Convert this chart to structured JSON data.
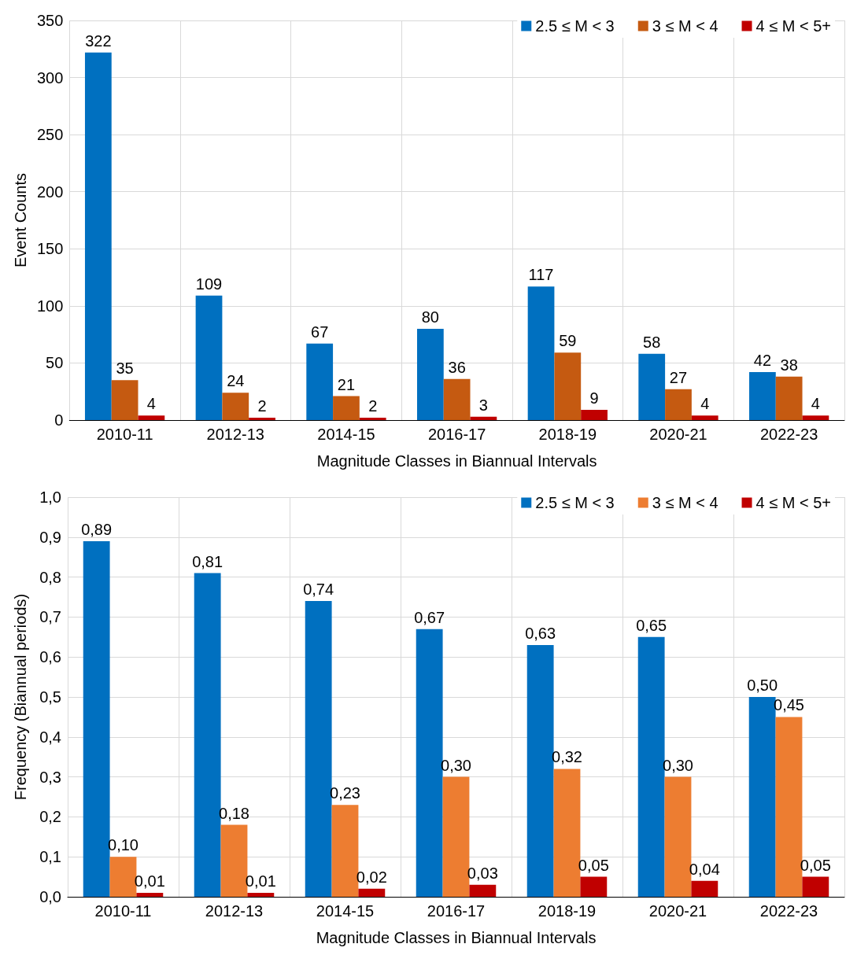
{
  "chart_data": [
    {
      "type": "bar",
      "xlabel": "Magnitude Classes in Biannual Intervals",
      "ylabel": "Event Counts",
      "categories": [
        "2010-11",
        "2012-13",
        "2014-15",
        "2016-17",
        "2018-19",
        "2020-21",
        "2022-23"
      ],
      "series": [
        {
          "name": "2.5 ≤ M < 3",
          "color": "#0070c0",
          "values": [
            322,
            109,
            67,
            80,
            117,
            58,
            42
          ]
        },
        {
          "name": "3 ≤ M < 4",
          "color": "#c55a11",
          "values": [
            35,
            24,
            21,
            36,
            59,
            27,
            38
          ]
        },
        {
          "name": "4 ≤ M < 5+",
          "color": "#c00000",
          "values": [
            4,
            2,
            2,
            3,
            9,
            4,
            4
          ]
        }
      ],
      "ylim": [
        0,
        350
      ],
      "yticks": [
        0,
        50,
        100,
        150,
        200,
        250,
        300,
        350
      ],
      "grid": true,
      "legend": "top right",
      "data_labels": true
    },
    {
      "type": "bar",
      "xlabel": "Magnitude Classes in Biannual Intervals",
      "ylabel": "Frequency (Biannual periods)",
      "categories": [
        "2010-11",
        "2012-13",
        "2014-15",
        "2016-17",
        "2018-19",
        "2020-21",
        "2022-23"
      ],
      "series": [
        {
          "name": "2.5 ≤ M < 3",
          "color": "#0070c0",
          "values": [
            0.89,
            0.81,
            0.74,
            0.67,
            0.63,
            0.65,
            0.5
          ],
          "value_labels": [
            "0,89",
            "0,81",
            "0,74",
            "0,67",
            "0,63",
            "0,65",
            "0,50"
          ]
        },
        {
          "name": "3 ≤ M < 4",
          "color": "#ed7d31",
          "values": [
            0.1,
            0.18,
            0.23,
            0.3,
            0.32,
            0.3,
            0.45
          ],
          "value_labels": [
            "0,10",
            "0,18",
            "0,23",
            "0,30",
            "0,32",
            "0,30",
            "0,45"
          ]
        },
        {
          "name": "4 ≤ M < 5+",
          "color": "#c00000",
          "values": [
            0.01,
            0.01,
            0.02,
            0.03,
            0.05,
            0.04,
            0.05
          ],
          "value_labels": [
            "0,01",
            "0,01",
            "0,02",
            "0,03",
            "0,05",
            "0,04",
            "0,05"
          ]
        }
      ],
      "ylim": [
        0,
        1.0
      ],
      "yticks": [
        {
          "value": 0,
          "label": "0,0"
        },
        {
          "value": 0.1,
          "label": "0,1"
        },
        {
          "value": 0.2,
          "label": "0,2"
        },
        {
          "value": 0.3,
          "label": "0,3"
        },
        {
          "value": 0.4,
          "label": "0,4"
        },
        {
          "value": 0.5,
          "label": "0,5"
        },
        {
          "value": 0.6,
          "label": "0,6"
        },
        {
          "value": 0.7,
          "label": "0,7"
        },
        {
          "value": 0.8,
          "label": "0,8"
        },
        {
          "value": 0.9,
          "label": "0,9"
        },
        {
          "value": 1.0,
          "label": "1,0"
        }
      ],
      "grid": true,
      "legend": "top right"
    }
  ]
}
